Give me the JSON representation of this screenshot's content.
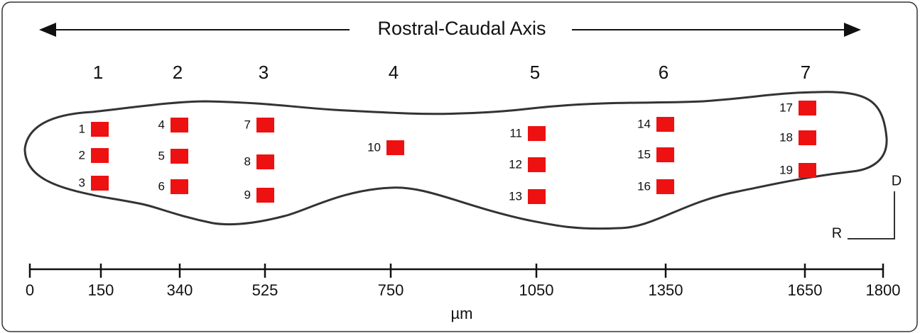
{
  "header": {
    "title": "Rostral-Caudal Axis"
  },
  "columns": [
    {
      "label": "1",
      "sites": [
        "1",
        "2",
        "3"
      ],
      "tick": 150
    },
    {
      "label": "2",
      "sites": [
        "4",
        "5",
        "6"
      ],
      "tick": 340
    },
    {
      "label": "3",
      "sites": [
        "7",
        "8",
        "9"
      ],
      "tick": 525
    },
    {
      "label": "4",
      "sites": [
        "10"
      ],
      "tick": 750
    },
    {
      "label": "5",
      "sites": [
        "11",
        "12",
        "13"
      ],
      "tick": 1050
    },
    {
      "label": "6",
      "sites": [
        "14",
        "15",
        "16"
      ],
      "tick": 1350
    },
    {
      "label": "7",
      "sites": [
        "17",
        "18",
        "19"
      ],
      "tick": 1650
    }
  ],
  "axis": {
    "start": 0,
    "end": 1800,
    "label": "µm"
  },
  "orientation": {
    "dorsal": "D",
    "rostral": "R"
  }
}
